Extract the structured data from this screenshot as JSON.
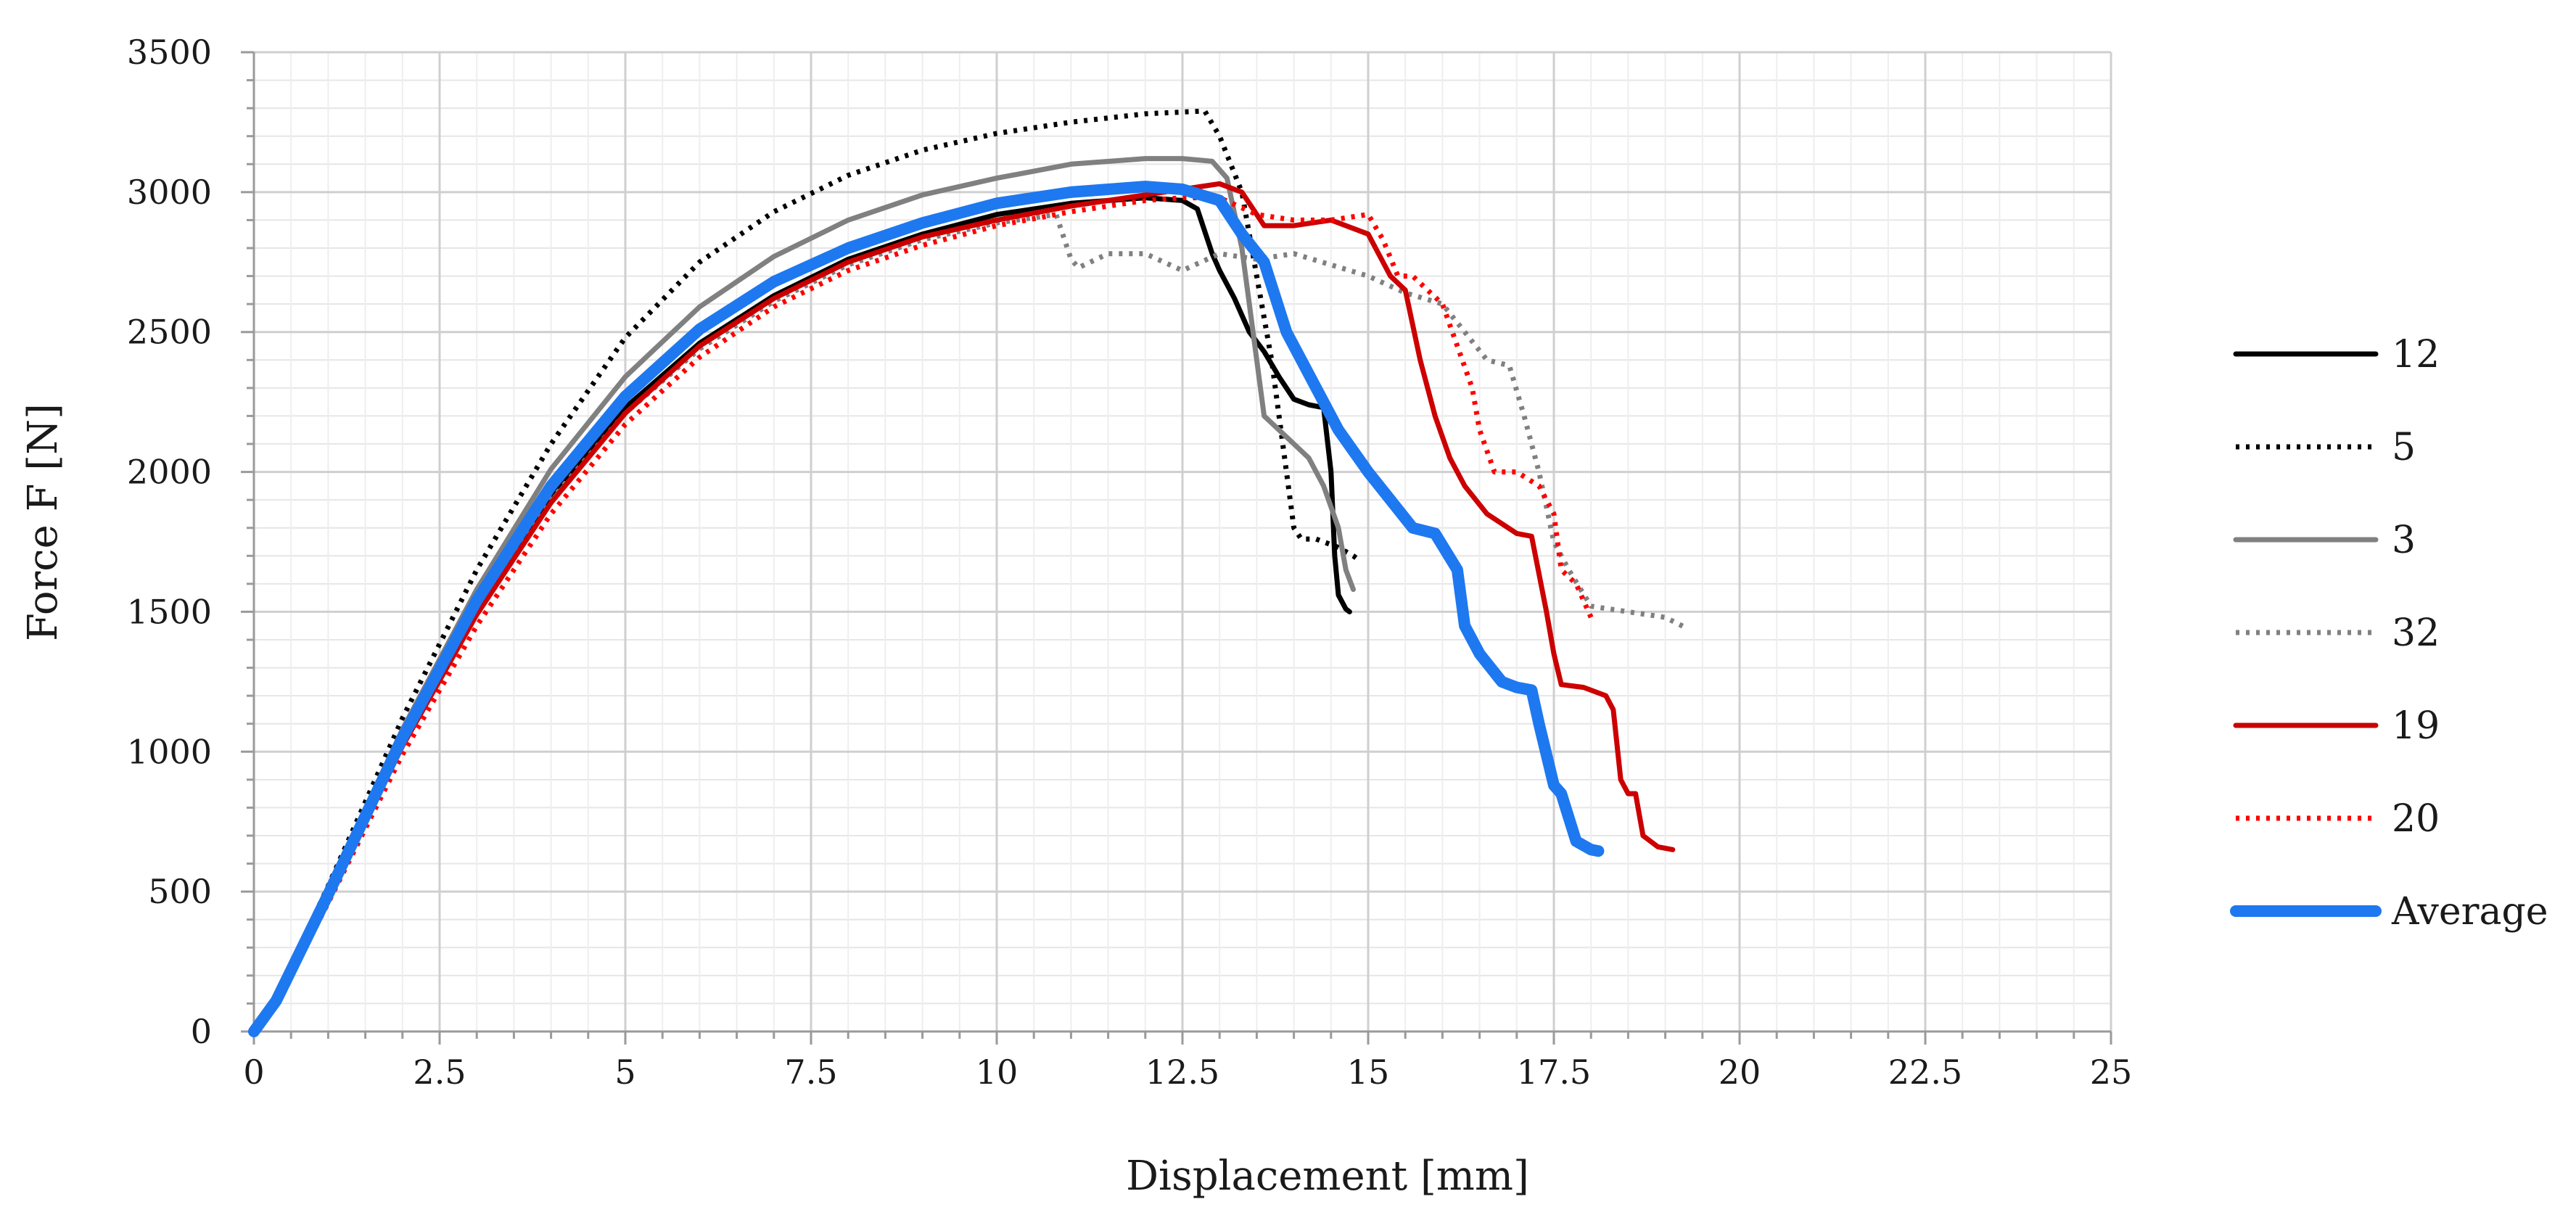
{
  "chart_data": {
    "type": "line",
    "title": "",
    "xlabel": "Displacement [mm]",
    "ylabel": "Force F [N]",
    "xlim": [
      0,
      25
    ],
    "ylim": [
      0,
      3500
    ],
    "xticks": [
      0,
      2.5,
      5,
      7.5,
      10,
      12.5,
      15,
      17.5,
      20,
      22.5,
      25
    ],
    "xtick_labels": [
      "0",
      "2.5",
      "5",
      "7.5",
      "10",
      "12.5",
      "15",
      "17.5",
      "20",
      "22.5",
      "25"
    ],
    "yticks": [
      0,
      500,
      1000,
      1500,
      2000,
      2500,
      3000,
      3500
    ],
    "ytick_labels": [
      "0",
      "500",
      "1000",
      "1500",
      "2000",
      "2500",
      "3000",
      "3500"
    ],
    "grid": true,
    "legend_position": "right",
    "series": [
      {
        "name": "12",
        "color": "#000000",
        "style": "solid",
        "width": 7,
        "x": [
          0,
          0.3,
          1,
          2,
          3,
          4,
          5,
          6,
          7,
          8,
          9,
          10,
          11,
          12,
          12.5,
          12.7,
          12.75,
          12.9,
          13.0,
          13.2,
          13.4,
          13.6,
          13.8,
          14.0,
          14.2,
          14.4,
          14.5,
          14.55,
          14.6,
          14.7,
          14.75
        ],
        "y": [
          0,
          120,
          500,
          1050,
          1520,
          1920,
          2230,
          2460,
          2630,
          2760,
          2850,
          2920,
          2960,
          2980,
          2970,
          2940,
          2900,
          2780,
          2720,
          2620,
          2500,
          2430,
          2340,
          2260,
          2240,
          2230,
          2000,
          1700,
          1560,
          1510,
          1500
        ]
      },
      {
        "name": "5",
        "color": "#000000",
        "style": "dotted",
        "width": 7,
        "x": [
          0,
          0.3,
          1,
          2,
          3,
          4,
          5,
          6,
          7,
          8,
          9,
          10,
          11,
          12,
          12.8,
          13.0,
          13.3,
          13.5,
          13.7,
          13.9,
          14.0,
          14.1,
          14.3,
          14.6,
          14.8,
          14.9
        ],
        "y": [
          0,
          120,
          520,
          1120,
          1650,
          2100,
          2480,
          2750,
          2930,
          3060,
          3150,
          3210,
          3250,
          3280,
          3290,
          3200,
          3000,
          2700,
          2400,
          2000,
          1800,
          1760,
          1760,
          1730,
          1700,
          1680
        ]
      },
      {
        "name": "3",
        "color": "#808080",
        "style": "solid",
        "width": 7,
        "x": [
          0,
          0.3,
          1,
          2,
          3,
          4,
          5,
          6,
          7,
          8,
          9,
          10,
          11,
          12,
          12.5,
          12.9,
          13.1,
          13.3,
          13.4,
          13.5,
          13.6,
          13.8,
          14.0,
          14.2,
          14.4,
          14.6,
          14.7,
          14.8
        ],
        "y": [
          0,
          120,
          510,
          1080,
          1580,
          2010,
          2340,
          2590,
          2770,
          2900,
          2990,
          3050,
          3100,
          3120,
          3120,
          3110,
          3050,
          2800,
          2600,
          2400,
          2200,
          2150,
          2100,
          2050,
          1950,
          1800,
          1650,
          1580
        ]
      },
      {
        "name": "32",
        "color": "#808080",
        "style": "dotted",
        "width": 7,
        "x": [
          0,
          0.3,
          1,
          2,
          3,
          4,
          5,
          6,
          7,
          8,
          9,
          10,
          10.8,
          11.0,
          11.1,
          11.5,
          12.0,
          12.5,
          13.0,
          13.5,
          14.0,
          14.5,
          15.0,
          15.5,
          16.0,
          16.3,
          16.6,
          16.9,
          17.1,
          17.3,
          17.5,
          17.7,
          18.0,
          18.5,
          19.0,
          19.3
        ],
        "y": [
          0,
          110,
          490,
          1040,
          1500,
          1900,
          2210,
          2440,
          2610,
          2740,
          2830,
          2890,
          2920,
          2760,
          2730,
          2780,
          2780,
          2720,
          2780,
          2760,
          2780,
          2740,
          2700,
          2640,
          2600,
          2500,
          2400,
          2380,
          2200,
          2000,
          1750,
          1650,
          1520,
          1500,
          1480,
          1440
        ]
      },
      {
        "name": "19",
        "color": "#cc0000",
        "style": "solid",
        "width": 7,
        "x": [
          0,
          0.3,
          1,
          2,
          3,
          4,
          5,
          6,
          7,
          8,
          9,
          10,
          11,
          12,
          12.5,
          13.0,
          13.3,
          13.6,
          14.0,
          14.5,
          15.0,
          15.3,
          15.5,
          15.7,
          15.9,
          16.1,
          16.3,
          16.6,
          17.0,
          17.2,
          17.4,
          17.5,
          17.6,
          17.9,
          18.2,
          18.3,
          18.4,
          18.5,
          18.6,
          18.7,
          18.9,
          19.1
        ],
        "y": [
          0,
          110,
          480,
          1020,
          1490,
          1890,
          2210,
          2450,
          2620,
          2750,
          2840,
          2900,
          2950,
          2990,
          3010,
          3030,
          3000,
          2880,
          2880,
          2900,
          2850,
          2700,
          2650,
          2400,
          2200,
          2050,
          1950,
          1850,
          1780,
          1770,
          1500,
          1350,
          1240,
          1230,
          1200,
          1150,
          900,
          850,
          850,
          700,
          660,
          650
        ]
      },
      {
        "name": "20",
        "color": "#ff0000",
        "style": "dotted",
        "width": 7,
        "x": [
          0,
          0.3,
          1,
          2,
          3,
          4,
          5,
          6,
          7,
          8,
          9,
          10,
          11,
          12,
          12.5,
          13.0,
          13.5,
          14.0,
          14.5,
          15.0,
          15.2,
          15.4,
          15.6,
          15.8,
          16.0,
          16.2,
          16.4,
          16.5,
          16.7,
          17.0,
          17.3,
          17.5,
          17.6,
          17.8,
          18.0
        ],
        "y": [
          0,
          100,
          460,
          990,
          1450,
          1850,
          2170,
          2410,
          2590,
          2720,
          2810,
          2880,
          2930,
          2970,
          2980,
          2980,
          2920,
          2900,
          2900,
          2920,
          2830,
          2700,
          2700,
          2650,
          2600,
          2450,
          2300,
          2150,
          2000,
          2000,
          1950,
          1850,
          1650,
          1600,
          1480
        ]
      },
      {
        "name": "Average",
        "color": "#1e78f0",
        "style": "solid",
        "width": 16,
        "x": [
          0,
          0.3,
          1,
          2,
          3,
          4,
          5,
          6,
          7,
          8,
          9,
          10,
          11,
          12,
          12.5,
          13.0,
          13.3,
          13.6,
          13.9,
          14.2,
          14.6,
          15.0,
          15.3,
          15.6,
          15.9,
          16.2,
          16.3,
          16.5,
          16.8,
          17.0,
          17.2,
          17.3,
          17.5,
          17.6,
          17.8,
          18.0,
          18.1
        ],
        "y": [
          0,
          110,
          490,
          1050,
          1540,
          1950,
          2270,
          2510,
          2680,
          2800,
          2890,
          2960,
          3000,
          3020,
          3010,
          2970,
          2850,
          2750,
          2500,
          2350,
          2150,
          2000,
          1900,
          1800,
          1780,
          1650,
          1450,
          1350,
          1250,
          1230,
          1220,
          1100,
          880,
          850,
          680,
          650,
          645
        ]
      }
    ]
  }
}
